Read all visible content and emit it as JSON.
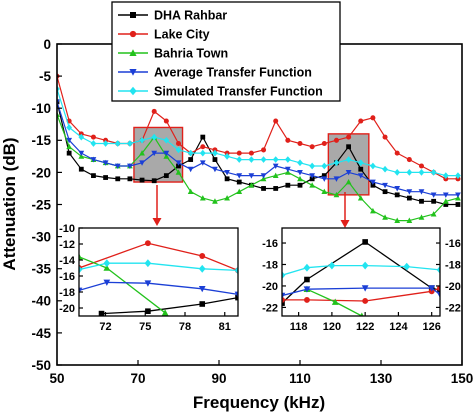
{
  "chart_data": [
    {
      "id": "main",
      "type": "line",
      "title": "",
      "xlabel": "Frequency (kHz)",
      "ylabel": "Attenuation (dB)",
      "xlim": [
        50,
        150
      ],
      "ylim": [
        -50,
        0
      ],
      "x_ticks": [
        50,
        70,
        90,
        110,
        130,
        150
      ],
      "y_ticks": [
        0,
        -5,
        -10,
        -15,
        -20,
        -25,
        -30,
        -35,
        -40,
        -45,
        -50
      ],
      "grid": false,
      "legend_position": "top-center",
      "series": [
        {
          "name": "DHA Rahbar",
          "color": "#000000",
          "marker": "square",
          "x": [
            50,
            53,
            56,
            59,
            62,
            65,
            68,
            71,
            74,
            77,
            80,
            83,
            86,
            89,
            92,
            95,
            98,
            101,
            104,
            107,
            110,
            113,
            116,
            119,
            122,
            125,
            128,
            131,
            134,
            137,
            140,
            143,
            146,
            149
          ],
          "y": [
            -9,
            -17,
            -19.5,
            -20.5,
            -20.8,
            -21,
            -21,
            -21.2,
            -21.3,
            -20.5,
            -19,
            -18,
            -14.5,
            -18,
            -21,
            -21.5,
            -22,
            -22.5,
            -22.5,
            -22,
            -22,
            -21,
            -20.5,
            -18.5,
            -16,
            -19.5,
            -22,
            -23,
            -23.5,
            -24,
            -24.5,
            -24.5,
            -25,
            -25
          ]
        },
        {
          "name": "Lake City",
          "color": "#e0201a",
          "marker": "circle",
          "x": [
            50,
            53,
            56,
            59,
            62,
            65,
            68,
            71,
            74,
            77,
            80,
            83,
            86,
            89,
            92,
            95,
            98,
            101,
            104,
            107,
            110,
            113,
            116,
            119,
            122,
            125,
            128,
            131,
            134,
            137,
            140,
            143,
            146,
            149
          ],
          "y": [
            -5,
            -12,
            -14,
            -14.5,
            -15,
            -15.5,
            -15.5,
            -15,
            -10.5,
            -12,
            -15.5,
            -17,
            -16,
            -16.5,
            -17,
            -17,
            -17,
            -16.5,
            -12,
            -15,
            -15.5,
            -16,
            -15.5,
            -15,
            -14.5,
            -12,
            -11.5,
            -14.5,
            -17,
            -18,
            -19,
            -20,
            -21,
            -21
          ]
        },
        {
          "name": "Bahria Town",
          "color": "#22c21c",
          "marker": "triangle-up",
          "x": [
            50,
            53,
            56,
            59,
            62,
            65,
            68,
            71,
            74,
            77,
            80,
            83,
            86,
            89,
            92,
            95,
            98,
            101,
            104,
            107,
            110,
            113,
            116,
            119,
            122,
            125,
            128,
            131,
            134,
            137,
            140,
            143,
            146,
            149
          ],
          "y": [
            -11,
            -16,
            -17.5,
            -18,
            -18.5,
            -19,
            -19,
            -17,
            -14.5,
            -17.5,
            -20,
            -23,
            -24,
            -24.5,
            -24,
            -23,
            -22,
            -21,
            -20.5,
            -20,
            -21,
            -22,
            -23,
            -23.5,
            -21.5,
            -24,
            -26,
            -27,
            -27.5,
            -27.5,
            -27,
            -26.5,
            -24.5,
            -24
          ]
        },
        {
          "name": "Average Transfer Function",
          "color": "#1b3fd6",
          "marker": "triangle-down",
          "x": [
            50,
            53,
            56,
            59,
            62,
            65,
            68,
            71,
            74,
            77,
            80,
            83,
            86,
            89,
            92,
            95,
            98,
            101,
            104,
            107,
            110,
            113,
            116,
            119,
            122,
            125,
            128,
            131,
            134,
            137,
            140,
            143,
            146,
            149
          ],
          "y": [
            -9,
            -15,
            -17,
            -18,
            -18.5,
            -19,
            -19,
            -18.5,
            -17,
            -17,
            -18.5,
            -19.5,
            -18.5,
            -19.5,
            -20,
            -20.5,
            -20.5,
            -20.5,
            -19,
            -19.5,
            -20,
            -20.5,
            -21,
            -21,
            -20,
            -20.5,
            -21.5,
            -22,
            -22.5,
            -23,
            -23,
            -23.5,
            -23.5,
            -23.5
          ]
        },
        {
          "name": "Simulated Transfer Function",
          "color": "#22e4f0",
          "marker": "diamond",
          "x": [
            50,
            53,
            56,
            59,
            62,
            65,
            68,
            71,
            74,
            77,
            80,
            83,
            86,
            89,
            92,
            95,
            98,
            101,
            104,
            107,
            110,
            113,
            116,
            119,
            122,
            125,
            128,
            131,
            134,
            137,
            140,
            143,
            146,
            149
          ],
          "y": [
            -7,
            -13,
            -14.5,
            -15.5,
            -15.5,
            -15.5,
            -15.5,
            -15,
            -14.5,
            -15,
            -16.5,
            -17,
            -17,
            -17,
            -17.5,
            -18,
            -18,
            -18,
            -18,
            -18,
            -18.5,
            -19,
            -19,
            -18.5,
            -18,
            -18.5,
            -19,
            -19.5,
            -20,
            -20,
            -20,
            -20,
            -20.5,
            -20.5
          ]
        }
      ],
      "highlight_regions": [
        {
          "x": [
            69,
            81
          ],
          "y": [
            -21.5,
            -13
          ]
        },
        {
          "x": [
            117,
            127
          ],
          "y": [
            -23.5,
            -14
          ]
        }
      ]
    },
    {
      "id": "inset-left",
      "type": "line",
      "xlim": [
        70,
        82
      ],
      "ylim": [
        -21,
        -10
      ],
      "x_ticks": [
        72,
        75,
        78,
        81
      ],
      "y_ticks": [
        -10,
        -12,
        -14,
        -16,
        -18,
        -20
      ],
      "series": [
        {
          "name": "DHA Rahbar",
          "color": "#000000",
          "marker": "square",
          "x": [
            71.7,
            75.2,
            79.3,
            82
          ],
          "y": [
            -20.7,
            -20.4,
            -19.5,
            -18.7
          ]
        },
        {
          "name": "Lake City",
          "color": "#e0201a",
          "marker": "circle",
          "x": [
            70,
            75.2,
            79.3,
            82
          ],
          "y": [
            -15,
            -11.9,
            -13.5,
            -15.3
          ]
        },
        {
          "name": "Bahria Town",
          "color": "#22c21c",
          "marker": "triangle-up",
          "x": [
            70,
            72.1,
            76.5
          ],
          "y": [
            -13.6,
            -15,
            -20.6
          ]
        },
        {
          "name": "Average Transfer Function",
          "color": "#1b3fd6",
          "marker": "triangle-down",
          "x": [
            70,
            72.1,
            75.2,
            79.3,
            82
          ],
          "y": [
            -17.8,
            -16.8,
            -16.9,
            -17.6,
            -18.3
          ]
        },
        {
          "name": "Simulated Transfer Function",
          "color": "#22e4f0",
          "marker": "diamond",
          "x": [
            70,
            72.1,
            75.2,
            79.3,
            82
          ],
          "y": [
            -15.2,
            -14.4,
            -14.4,
            -15.1,
            -15.3
          ]
        }
      ]
    },
    {
      "id": "inset-right",
      "type": "line",
      "xlim": [
        117,
        126.5
      ],
      "ylim": [
        -22.8,
        -14.6
      ],
      "x_ticks": [
        118,
        120,
        122,
        124,
        126
      ],
      "y_ticks": [
        -16,
        -18,
        -20,
        -22
      ],
      "right_y_ticks": [
        -16,
        -18,
        -20,
        -22
      ],
      "series": [
        {
          "name": "DHA Rahbar",
          "color": "#000000",
          "marker": "square",
          "x": [
            117,
            118.5,
            122,
            126,
            126.5
          ],
          "y": [
            -21.6,
            -19.4,
            -15.9,
            -20.2,
            -20.4
          ]
        },
        {
          "name": "Lake City",
          "color": "#e0201a",
          "marker": "circle",
          "x": [
            117,
            118.5,
            122,
            126,
            126.5
          ],
          "y": [
            -21.3,
            -21.3,
            -21.4,
            -20.5,
            -20.2
          ]
        },
        {
          "name": "Bahria Town",
          "color": "#22c21c",
          "marker": "triangle-up",
          "x": [
            118.5,
            120.2,
            121.8
          ],
          "y": [
            -20.3,
            -21.5,
            -22.8
          ]
        },
        {
          "name": "Average Transfer Function",
          "color": "#1b3fd6",
          "marker": "triangle-down",
          "x": [
            117,
            118.5,
            122,
            126,
            126.5
          ],
          "y": [
            -20.9,
            -20.3,
            -20.2,
            -20.2,
            -20.8
          ]
        },
        {
          "name": "Simulated Transfer Function",
          "color": "#22e4f0",
          "marker": "diamond",
          "x": [
            117,
            118.5,
            120,
            122,
            124.5,
            126.5
          ],
          "y": [
            -19,
            -18.3,
            -18.1,
            -18.1,
            -18.2,
            -18.5
          ]
        }
      ]
    }
  ]
}
